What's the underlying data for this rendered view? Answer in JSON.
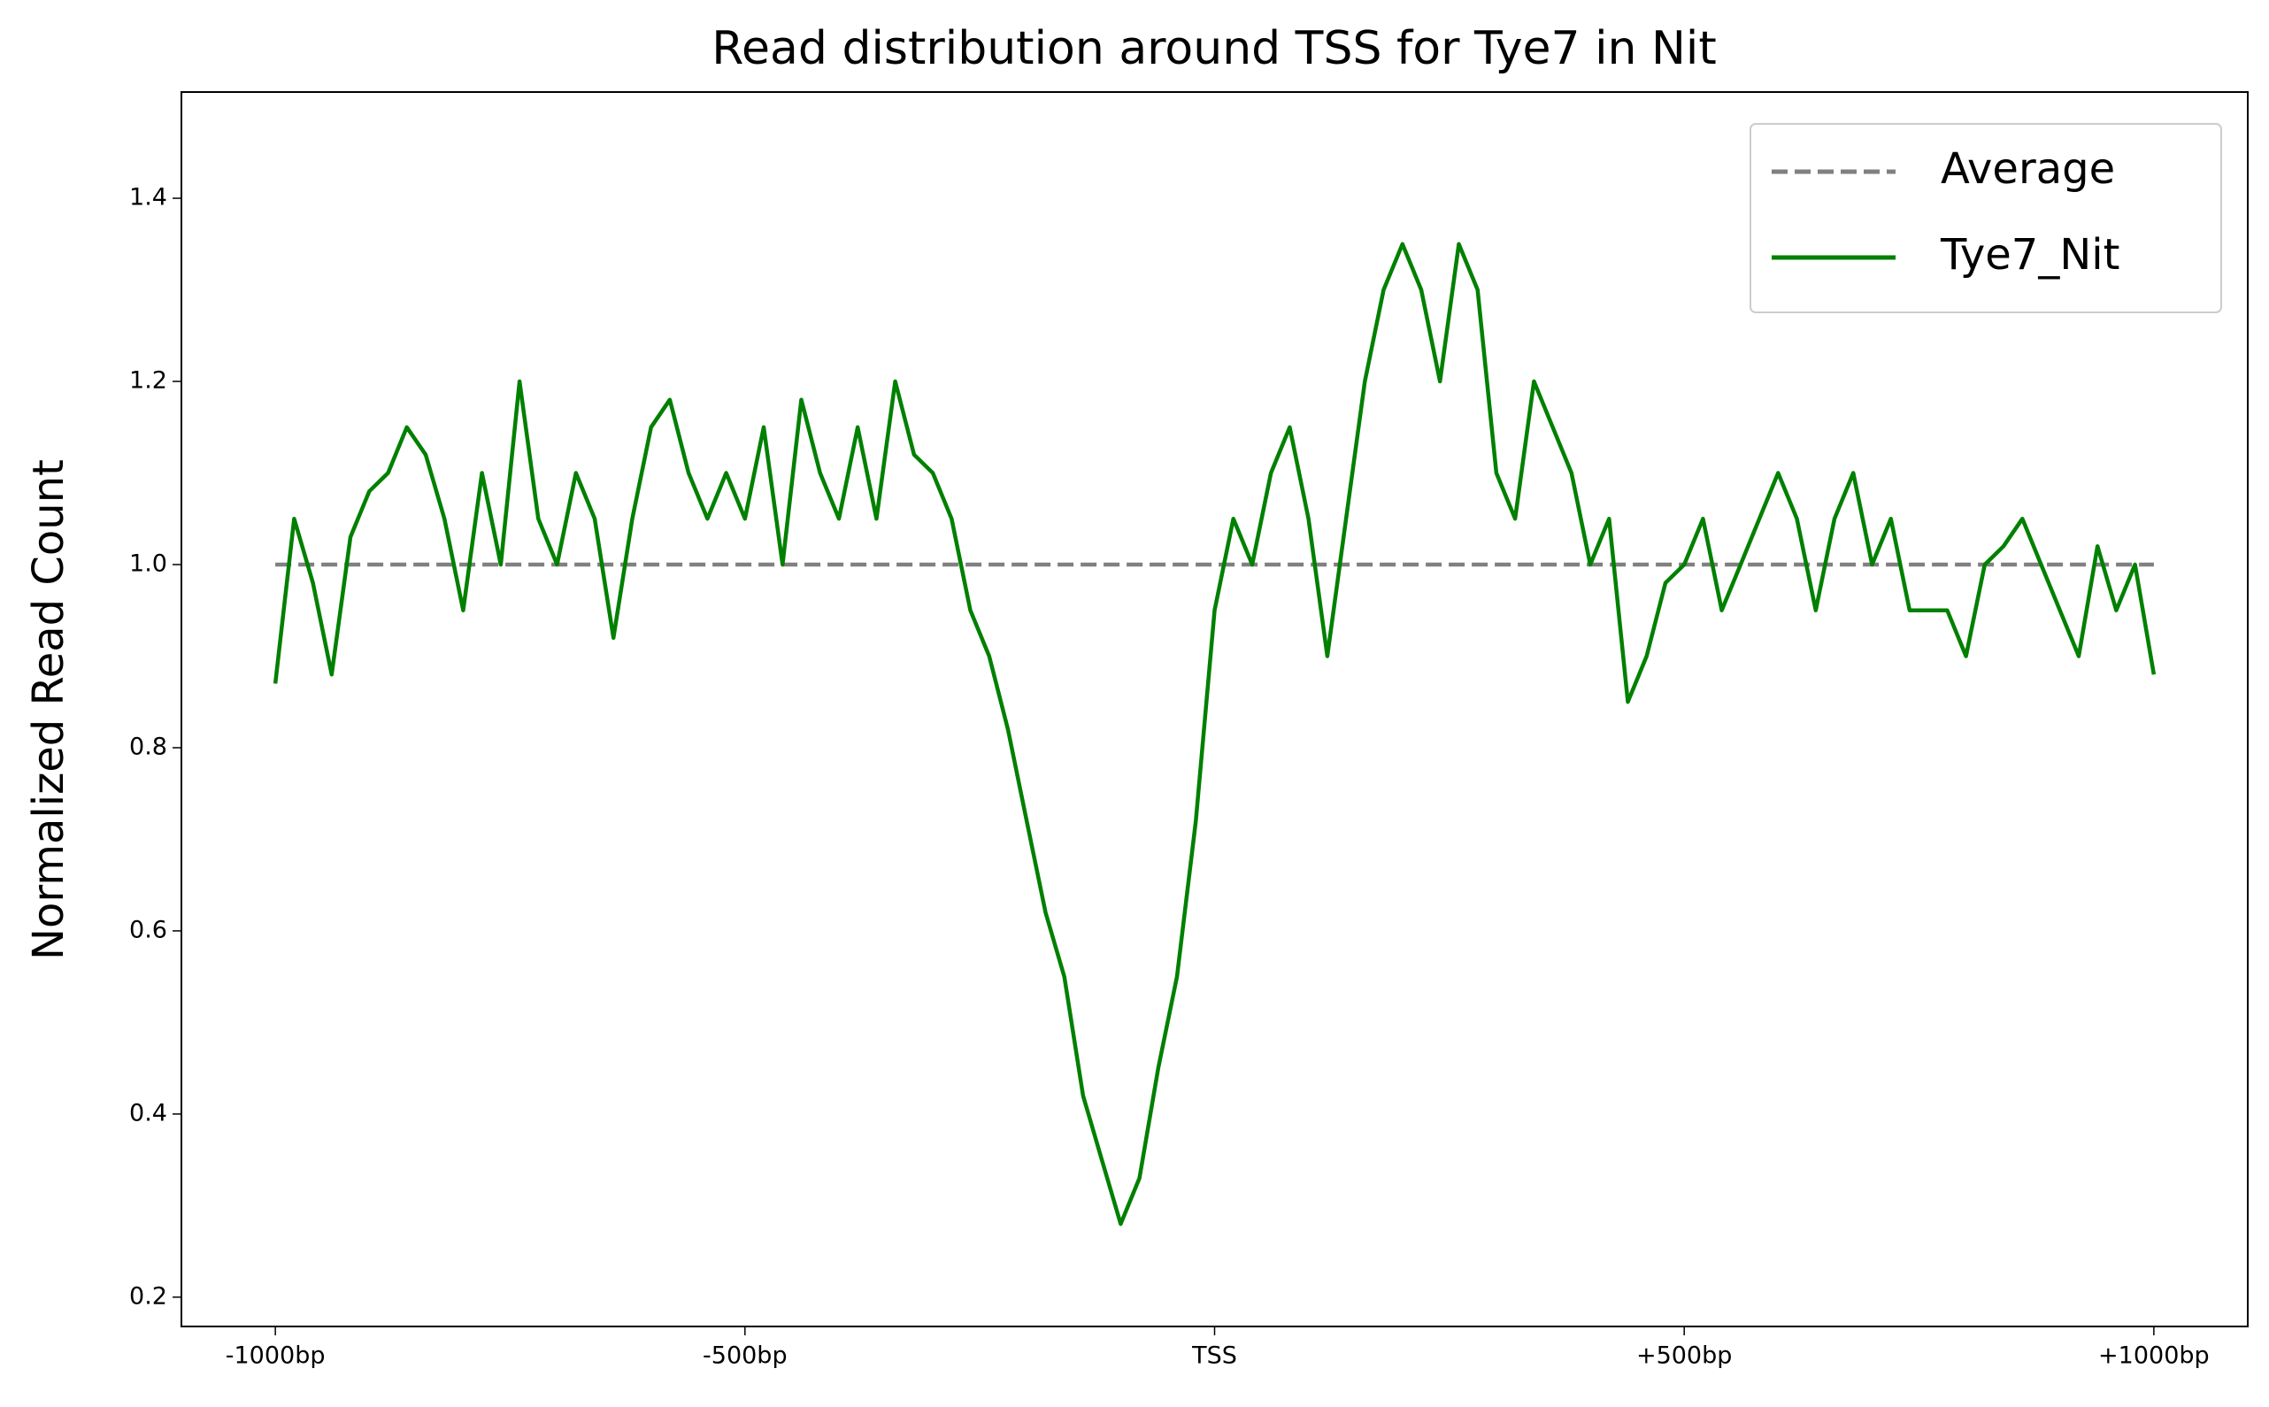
{
  "chart_data": {
    "type": "line",
    "title": "Read distribution around TSS for Tye7 in Nit",
    "y_label": "Normalized Read Count",
    "xlim": [
      -1100,
      1100
    ],
    "ylim": [
      0.168,
      1.516
    ],
    "xticks": [
      {
        "value": -1000,
        "label": "-1000bp"
      },
      {
        "value": -500,
        "label": "-500bp"
      },
      {
        "value": 0,
        "label": "TSS"
      },
      {
        "value": 500,
        "label": "+500bp"
      },
      {
        "value": 1000,
        "label": "+1000bp"
      }
    ],
    "yticks": [
      {
        "value": 0.2,
        "label": "0.2"
      },
      {
        "value": 0.4,
        "label": "0.4"
      },
      {
        "value": 0.6,
        "label": "0.6"
      },
      {
        "value": 0.8,
        "label": "0.8"
      },
      {
        "value": 1.0,
        "label": "1.0"
      },
      {
        "value": 1.2,
        "label": "1.2"
      },
      {
        "value": 1.4,
        "label": "1.4"
      }
    ],
    "legend": "upper right",
    "series": [
      {
        "name": "Average",
        "color": "#808080",
        "dashed": true,
        "x": [
          -1000,
          1000
        ],
        "values": [
          1,
          1
        ]
      },
      {
        "name": "Tye7_Nit",
        "color": "#008000",
        "dashed": false,
        "x": [
          -1000,
          -980,
          -960,
          -940,
          -920,
          -900,
          -880,
          -860,
          -840,
          -820,
          -800,
          -780,
          -760,
          -740,
          -720,
          -700,
          -680,
          -660,
          -640,
          -620,
          -600,
          -580,
          -560,
          -540,
          -520,
          -500,
          -480,
          -460,
          -440,
          -420,
          -400,
          -380,
          -360,
          -340,
          -320,
          -300,
          -280,
          -260,
          -240,
          -220,
          -200,
          -180,
          -160,
          -140,
          -120,
          -100,
          -80,
          -60,
          -40,
          -20,
          0,
          20,
          40,
          60,
          80,
          100,
          120,
          140,
          160,
          180,
          200,
          220,
          240,
          260,
          280,
          300,
          320,
          340,
          360,
          380,
          400,
          420,
          440,
          460,
          480,
          500,
          520,
          540,
          560,
          580,
          600,
          620,
          640,
          660,
          680,
          700,
          720,
          740,
          760,
          780,
          800,
          820,
          840,
          860,
          880,
          900,
          920,
          940,
          960,
          980,
          1000
        ],
        "values": [
          0.87,
          1.05,
          0.98,
          0.88,
          1.03,
          1.08,
          1.1,
          1.15,
          1.12,
          1.05,
          0.95,
          1.1,
          1.0,
          1.2,
          1.05,
          1.0,
          1.1,
          1.05,
          0.92,
          1.05,
          1.15,
          1.18,
          1.1,
          1.05,
          1.1,
          1.05,
          1.15,
          1.0,
          1.18,
          1.1,
          1.05,
          1.15,
          1.05,
          1.2,
          1.12,
          1.1,
          1.05,
          0.95,
          0.9,
          0.82,
          0.72,
          0.62,
          0.55,
          0.42,
          0.35,
          0.28,
          0.33,
          0.45,
          0.55,
          0.72,
          0.95,
          1.05,
          1.0,
          1.1,
          1.15,
          1.05,
          0.9,
          1.05,
          1.2,
          1.3,
          1.35,
          1.3,
          1.2,
          1.35,
          1.3,
          1.1,
          1.05,
          1.2,
          1.15,
          1.1,
          1.0,
          1.05,
          0.85,
          0.9,
          0.98,
          1.0,
          1.05,
          0.95,
          1.0,
          1.05,
          1.1,
          1.05,
          0.95,
          1.05,
          1.1,
          1.0,
          1.05,
          0.95,
          0.95,
          0.95,
          0.9,
          1.0,
          1.02,
          1.05,
          1.0,
          0.95,
          0.9,
          1.02,
          0.95,
          1.0,
          0.88
        ]
      }
    ]
  }
}
